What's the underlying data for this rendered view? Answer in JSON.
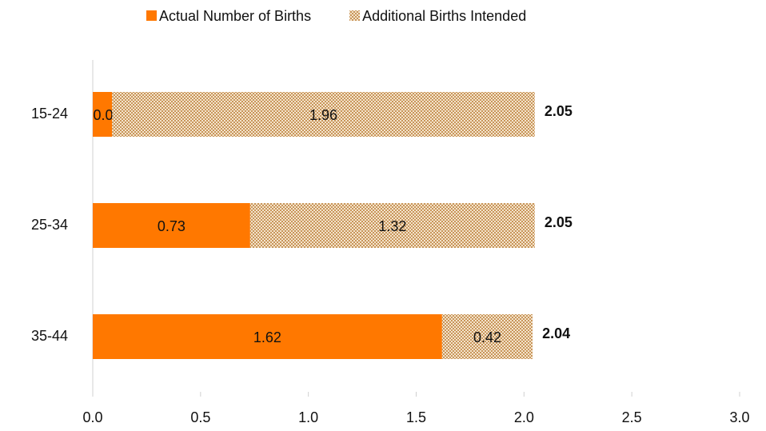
{
  "chart_data": {
    "type": "stacked-bar-horizontal",
    "categories": [
      "15-24",
      "25-34",
      "35-44"
    ],
    "series": [
      {
        "name": "Actual Number of Births",
        "color": "#ff7800",
        "values": [
          0.09,
          0.73,
          1.62
        ]
      },
      {
        "name": "Additional Births Intended",
        "color": "#c8955a",
        "pattern": "checker",
        "values": [
          1.96,
          1.32,
          0.42
        ]
      }
    ],
    "totals": [
      2.05,
      2.05,
      2.04
    ],
    "xlim": [
      0,
      3
    ],
    "xticks": [
      {
        "value": 0,
        "label": "0.0"
      },
      0.5,
      {
        "value": 1,
        "label": "1.0"
      },
      1.5,
      {
        "value": 2,
        "label": "2.0"
      },
      2.5,
      {
        "value": 3,
        "label": "3.0"
      }
    ],
    "legend": "top"
  }
}
